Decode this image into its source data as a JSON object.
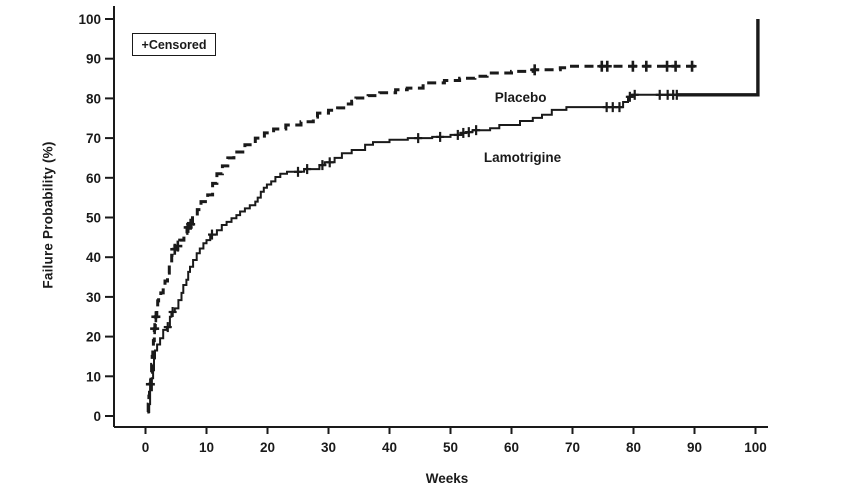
{
  "chart_data": {
    "type": "line",
    "subtype": "kaplan-meier-failure-step",
    "title": "",
    "xlabel": "Weeks",
    "ylabel": "Failure Probability (%)",
    "xlim": [
      0,
      100
    ],
    "ylim": [
      0,
      100
    ],
    "x_ticks": [
      0,
      10,
      20,
      30,
      40,
      50,
      60,
      70,
      80,
      90,
      100
    ],
    "y_ticks": [
      0,
      10,
      20,
      30,
      40,
      50,
      60,
      70,
      80,
      90,
      100
    ],
    "grid": false,
    "legend": {
      "text": "+Censored",
      "position": "top-left-inside"
    },
    "censor_marker": "+",
    "line_color": "#1a1a1a",
    "series": [
      {
        "name": "Placebo",
        "line_style": "dashed",
        "points": [
          [
            0.3,
            1
          ],
          [
            0.45,
            3
          ],
          [
            0.55,
            5
          ],
          [
            0.65,
            8
          ],
          [
            0.9,
            11
          ],
          [
            1.0,
            13
          ],
          [
            1.1,
            15
          ],
          [
            1.2,
            17
          ],
          [
            1.3,
            19
          ],
          [
            1.45,
            22
          ],
          [
            1.6,
            25
          ],
          [
            1.85,
            27
          ],
          [
            2.0,
            29
          ],
          [
            2.15,
            30
          ],
          [
            2.5,
            31
          ],
          [
            2.9,
            32.5
          ],
          [
            3.2,
            34
          ],
          [
            3.6,
            36
          ],
          [
            3.9,
            38.5
          ],
          [
            4.3,
            40.5
          ],
          [
            4.6,
            42
          ],
          [
            5.0,
            42.8
          ],
          [
            5.6,
            44.3
          ],
          [
            6.3,
            46
          ],
          [
            6.8,
            47.5
          ],
          [
            7.2,
            48.3
          ],
          [
            7.7,
            50.5
          ],
          [
            8.5,
            52
          ],
          [
            9.1,
            54
          ],
          [
            10.2,
            55.7
          ],
          [
            11.0,
            58.6
          ],
          [
            11.7,
            61
          ],
          [
            12.6,
            63
          ],
          [
            13.5,
            65
          ],
          [
            14.5,
            66.5
          ],
          [
            16.3,
            68.3
          ],
          [
            18.0,
            70
          ],
          [
            19.5,
            71.3
          ],
          [
            21.0,
            72.3
          ],
          [
            23.0,
            73.3
          ],
          [
            25.5,
            74.1
          ],
          [
            27.5,
            75.3
          ],
          [
            28.2,
            76.3
          ],
          [
            30.0,
            77
          ],
          [
            31.5,
            77.6
          ],
          [
            33.0,
            78.6
          ],
          [
            33.8,
            79.3
          ],
          [
            34.5,
            80.1
          ],
          [
            36.5,
            80.7
          ],
          [
            38.4,
            81.4
          ],
          [
            41.0,
            82.2
          ],
          [
            42.9,
            82.6
          ],
          [
            45.5,
            83.9
          ],
          [
            49.0,
            84.5
          ],
          [
            51.5,
            85.1
          ],
          [
            54.0,
            85.6
          ],
          [
            56.0,
            86.4
          ],
          [
            60.0,
            86.8
          ],
          [
            63.5,
            87.2
          ],
          [
            68.0,
            87.7
          ],
          [
            69.0,
            88.1
          ]
        ],
        "end_week": 90.5,
        "censored": [
          [
            0.8,
            8
          ],
          [
            1.5,
            22
          ],
          [
            1.7,
            25
          ],
          [
            4.8,
            42
          ],
          [
            5.3,
            42.8
          ],
          [
            7.0,
            47.5
          ],
          [
            7.4,
            48.3
          ],
          [
            63.8,
            87.2
          ],
          [
            74.8,
            88.1
          ],
          [
            75.7,
            88.1
          ],
          [
            79.9,
            88.1
          ],
          [
            82.1,
            88.1
          ],
          [
            85.5,
            88.1
          ],
          [
            86.9,
            88.1
          ],
          [
            89.6,
            88.1
          ]
        ]
      },
      {
        "name": "Lamotrigine",
        "line_style": "solid",
        "points": [
          [
            0.45,
            1
          ],
          [
            0.6,
            3
          ],
          [
            0.75,
            6.5
          ],
          [
            1.05,
            9.5
          ],
          [
            1.25,
            11.5
          ],
          [
            1.4,
            14.5
          ],
          [
            1.55,
            16.5
          ],
          [
            1.9,
            18
          ],
          [
            2.4,
            19.6
          ],
          [
            2.9,
            21.7
          ],
          [
            3.5,
            22.4
          ],
          [
            4.0,
            25
          ],
          [
            4.25,
            26.2
          ],
          [
            4.8,
            27.1
          ],
          [
            5.4,
            29.2
          ],
          [
            5.9,
            31
          ],
          [
            6.2,
            33
          ],
          [
            6.7,
            34.3
          ],
          [
            7.0,
            36.3
          ],
          [
            7.3,
            37.6
          ],
          [
            7.8,
            39.3
          ],
          [
            8.4,
            41
          ],
          [
            8.9,
            42.2
          ],
          [
            9.5,
            43.5
          ],
          [
            10.0,
            44.3
          ],
          [
            10.6,
            45.7
          ],
          [
            11.7,
            46.8
          ],
          [
            12.5,
            48.1
          ],
          [
            13.3,
            48.9
          ],
          [
            14.1,
            49.8
          ],
          [
            14.9,
            50.6
          ],
          [
            15.5,
            51.5
          ],
          [
            16.3,
            52.3
          ],
          [
            17.1,
            53.1
          ],
          [
            18.0,
            54
          ],
          [
            18.4,
            55
          ],
          [
            18.9,
            56.5
          ],
          [
            19.4,
            57.5
          ],
          [
            19.9,
            58.3
          ],
          [
            20.6,
            59.1
          ],
          [
            21.3,
            60.2
          ],
          [
            22.1,
            61
          ],
          [
            23.2,
            61.5
          ],
          [
            26.0,
            62.2
          ],
          [
            28.5,
            63.2
          ],
          [
            29.4,
            63.9
          ],
          [
            31.0,
            65
          ],
          [
            32.2,
            66.2
          ],
          [
            33.8,
            67
          ],
          [
            36.0,
            68.3
          ],
          [
            37.3,
            69
          ],
          [
            40.0,
            69.6
          ],
          [
            43.0,
            70
          ],
          [
            47.0,
            70.3
          ],
          [
            50.0,
            70.8
          ],
          [
            51.8,
            71.3
          ],
          [
            52.6,
            71.5
          ],
          [
            53.6,
            72
          ],
          [
            56.5,
            72.5
          ],
          [
            58.0,
            73.3
          ],
          [
            61.4,
            74.3
          ],
          [
            63.5,
            75.1
          ],
          [
            65.0,
            75.9
          ],
          [
            66.6,
            77.1
          ],
          [
            69.0,
            77.8
          ],
          [
            78.3,
            79.1
          ],
          [
            79.1,
            80.4
          ],
          [
            79.8,
            80.9
          ]
        ],
        "end_week": 100.4,
        "end_jump_to": 100,
        "thick_tail_from_week": 87.2,
        "censored": [
          [
            3.65,
            22.4
          ],
          [
            4.45,
            26.2
          ],
          [
            10.9,
            45.7
          ],
          [
            25.0,
            61.5
          ],
          [
            26.5,
            62.2
          ],
          [
            29.0,
            63.2
          ],
          [
            30.2,
            63.9
          ],
          [
            44.7,
            70
          ],
          [
            48.3,
            70.3
          ],
          [
            51.2,
            70.8
          ],
          [
            52.1,
            71.3
          ],
          [
            53.0,
            71.5
          ],
          [
            54.2,
            72
          ],
          [
            75.6,
            77.8
          ],
          [
            76.6,
            77.8
          ],
          [
            77.7,
            77.8
          ],
          [
            79.4,
            80.4
          ],
          [
            80.2,
            80.9
          ],
          [
            84.3,
            80.9
          ],
          [
            85.6,
            80.9
          ],
          [
            86.5,
            80.9
          ],
          [
            87.1,
            80.9
          ]
        ]
      }
    ],
    "annotations": [
      {
        "text": "Placebo",
        "week": 61.5,
        "pct": 80.3
      },
      {
        "text": "Lamotrigine",
        "week": 61.8,
        "pct": 65.3
      }
    ]
  }
}
